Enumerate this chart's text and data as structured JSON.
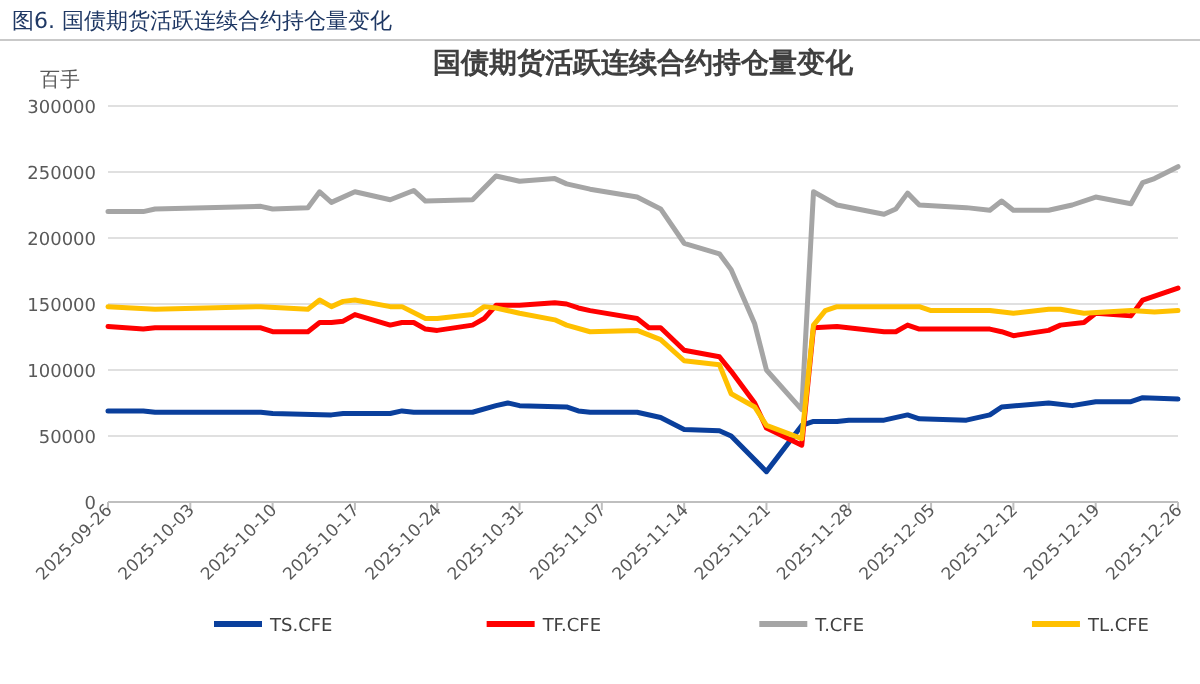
{
  "chart_data": {
    "type": "line",
    "title": "国债期货活跃连续合约持仓量变化",
    "ylabel": "百手",
    "annotations": [
      "图6.  国债期货活跃连续合约持仓量变化"
    ],
    "xlim": [
      "2025-09-26",
      "2025-12-26"
    ],
    "xticks": [
      "2025-09-26",
      "2025-10-03",
      "2025-10-10",
      "2025-10-17",
      "2025-10-24",
      "2025-10-31",
      "2025-11-07",
      "2025-11-14",
      "2025-11-21",
      "2025-11-28",
      "2025-12-05",
      "2025-12-12",
      "2025-12-19",
      "2025-12-26"
    ],
    "ylim": [
      0,
      300000
    ],
    "yticks": [
      0,
      50000,
      100000,
      150000,
      200000,
      250000,
      300000
    ],
    "grid": "y",
    "legend": "bottom",
    "marker": "none",
    "line_style": "solid",
    "series": [
      {
        "name": "TS.CFE",
        "color": "#0a3f9c",
        "x": [
          "2025-09-26",
          "2025-09-29",
          "2025-09-30",
          "2025-10-09",
          "2025-10-10",
          "2025-10-15",
          "2025-10-16",
          "2025-10-20",
          "2025-10-21",
          "2025-10-22",
          "2025-10-27",
          "2025-10-29",
          "2025-10-30",
          "2025-10-31",
          "2025-11-04",
          "2025-11-05",
          "2025-11-06",
          "2025-11-10",
          "2025-11-12",
          "2025-11-14",
          "2025-11-17",
          "2025-11-18",
          "2025-11-21",
          "2025-11-24",
          "2025-11-25",
          "2025-11-27",
          "2025-11-28",
          "2025-12-01",
          "2025-12-03",
          "2025-12-04",
          "2025-12-08",
          "2025-12-10",
          "2025-12-11",
          "2025-12-15",
          "2025-12-17",
          "2025-12-19",
          "2025-12-22",
          "2025-12-23",
          "2025-12-26"
        ],
        "values": [
          69000,
          69000,
          68000,
          68000,
          67000,
          66000,
          67000,
          67000,
          69000,
          68000,
          68000,
          73000,
          75000,
          73000,
          72000,
          69000,
          68000,
          68000,
          64000,
          55000,
          54000,
          50000,
          23000,
          58000,
          61000,
          61000,
          62000,
          62000,
          66000,
          63000,
          62000,
          66000,
          72000,
          75000,
          73000,
          76000,
          76000,
          79000,
          78000
        ]
      },
      {
        "name": "TF.CFE",
        "color": "#ff0000",
        "x": [
          "2025-09-26",
          "2025-09-29",
          "2025-09-30",
          "2025-10-09",
          "2025-10-10",
          "2025-10-13",
          "2025-10-14",
          "2025-10-15",
          "2025-10-16",
          "2025-10-17",
          "2025-10-20",
          "2025-10-21",
          "2025-10-22",
          "2025-10-23",
          "2025-10-24",
          "2025-10-27",
          "2025-10-28",
          "2025-10-29",
          "2025-10-31",
          "2025-11-03",
          "2025-11-04",
          "2025-11-05",
          "2025-11-06",
          "2025-11-10",
          "2025-11-11",
          "2025-11-12",
          "2025-11-14",
          "2025-11-17",
          "2025-11-18",
          "2025-11-20",
          "2025-11-21",
          "2025-11-24",
          "2025-11-25",
          "2025-11-27",
          "2025-12-01",
          "2025-12-02",
          "2025-12-03",
          "2025-12-04",
          "2025-12-08",
          "2025-12-10",
          "2025-12-11",
          "2025-12-12",
          "2025-12-15",
          "2025-12-16",
          "2025-12-18",
          "2025-12-19",
          "2025-12-22",
          "2025-12-23",
          "2025-12-24",
          "2025-12-26"
        ],
        "values": [
          133000,
          131000,
          132000,
          132000,
          129000,
          129000,
          136000,
          136000,
          137000,
          142000,
          134000,
          136000,
          136000,
          131000,
          130000,
          134000,
          139000,
          149000,
          149000,
          151000,
          150000,
          147000,
          145000,
          139000,
          132000,
          132000,
          115000,
          110000,
          99000,
          75000,
          56000,
          43000,
          132000,
          133000,
          129000,
          129000,
          134000,
          131000,
          131000,
          131000,
          129000,
          126000,
          130000,
          134000,
          136000,
          143000,
          141000,
          153000,
          156000,
          162000
        ]
      },
      {
        "name": "T.CFE",
        "color": "#a5a5a5",
        "x": [
          "2025-09-26",
          "2025-09-29",
          "2025-09-30",
          "2025-10-09",
          "2025-10-10",
          "2025-10-13",
          "2025-10-14",
          "2025-10-15",
          "2025-10-17",
          "2025-10-20",
          "2025-10-22",
          "2025-10-23",
          "2025-10-27",
          "2025-10-29",
          "2025-10-31",
          "2025-11-03",
          "2025-11-04",
          "2025-11-06",
          "2025-11-10",
          "2025-11-12",
          "2025-11-14",
          "2025-11-17",
          "2025-11-18",
          "2025-11-20",
          "2025-11-21",
          "2025-11-24",
          "2025-11-25",
          "2025-11-27",
          "2025-12-01",
          "2025-12-02",
          "2025-12-03",
          "2025-12-04",
          "2025-12-08",
          "2025-12-10",
          "2025-12-11",
          "2025-12-12",
          "2025-12-15",
          "2025-12-17",
          "2025-12-19",
          "2025-12-22",
          "2025-12-23",
          "2025-12-24",
          "2025-12-26"
        ],
        "values": [
          220000,
          220000,
          222000,
          224000,
          222000,
          223000,
          235000,
          227000,
          235000,
          229000,
          236000,
          228000,
          229000,
          247000,
          243000,
          245000,
          241000,
          237000,
          231000,
          222000,
          196000,
          188000,
          176000,
          135000,
          100000,
          70000,
          235000,
          225000,
          218000,
          222000,
          234000,
          225000,
          223000,
          221000,
          228000,
          221000,
          221000,
          225000,
          231000,
          226000,
          242000,
          245000,
          254000
        ]
      },
      {
        "name": "TL.CFE",
        "color": "#ffc000",
        "x": [
          "2025-09-26",
          "2025-09-30",
          "2025-10-09",
          "2025-10-13",
          "2025-10-14",
          "2025-10-15",
          "2025-10-16",
          "2025-10-17",
          "2025-10-20",
          "2025-10-21",
          "2025-10-23",
          "2025-10-24",
          "2025-10-27",
          "2025-10-28",
          "2025-10-29",
          "2025-10-31",
          "2025-11-03",
          "2025-11-04",
          "2025-11-06",
          "2025-11-10",
          "2025-11-12",
          "2025-11-14",
          "2025-11-17",
          "2025-11-18",
          "2025-11-20",
          "2025-11-21",
          "2025-11-24",
          "2025-11-25",
          "2025-11-26",
          "2025-11-27",
          "2025-12-01",
          "2025-12-04",
          "2025-12-05",
          "2025-12-10",
          "2025-12-12",
          "2025-12-15",
          "2025-12-16",
          "2025-12-18",
          "2025-12-22",
          "2025-12-24",
          "2025-12-26"
        ],
        "values": [
          148000,
          146000,
          148000,
          146000,
          153000,
          148000,
          152000,
          153000,
          148000,
          148000,
          139000,
          139000,
          142000,
          148000,
          147000,
          143000,
          138000,
          134000,
          129000,
          130000,
          123000,
          107000,
          104000,
          82000,
          72000,
          58000,
          48000,
          134000,
          145000,
          148000,
          148000,
          148000,
          145000,
          145000,
          143000,
          146000,
          146000,
          143000,
          145000,
          144000,
          145000
        ]
      }
    ]
  }
}
